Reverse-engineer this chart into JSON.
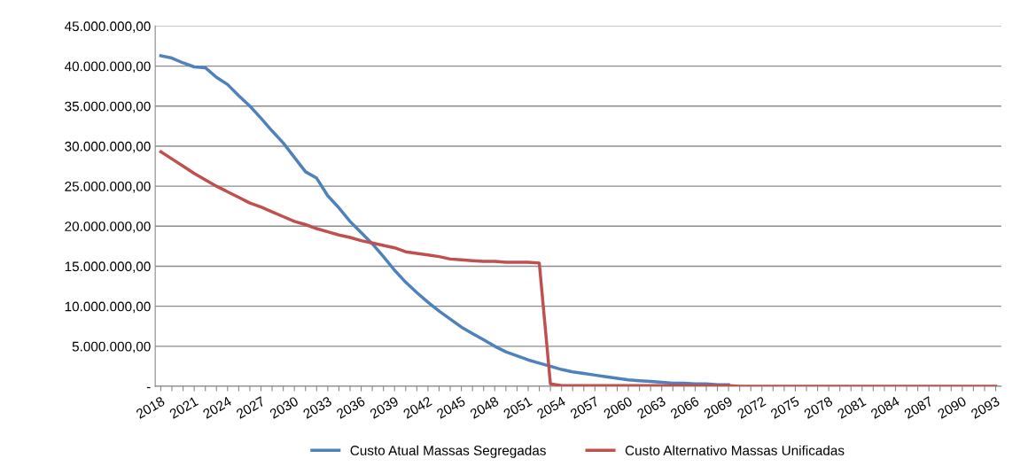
{
  "chart_data": {
    "type": "line",
    "categories": [
      "2018",
      null,
      null,
      "2021",
      null,
      null,
      "2024",
      null,
      null,
      "2027",
      null,
      null,
      "2030",
      null,
      null,
      "2033",
      null,
      null,
      "2036",
      null,
      null,
      "2039",
      null,
      null,
      "2042",
      null,
      null,
      "2045",
      null,
      null,
      "2048",
      null,
      null,
      "2051",
      null,
      null,
      "2054",
      null,
      null,
      "2057",
      null,
      null,
      "2060",
      null,
      null,
      "2063",
      null,
      null,
      "2066",
      null,
      null,
      "2069",
      null,
      null,
      "2072",
      null,
      null,
      "2075",
      null,
      null,
      "2078",
      null,
      null,
      "2081",
      null,
      null,
      "2084",
      null,
      null,
      "2087",
      null,
      null,
      "2090",
      null,
      null,
      "2093"
    ],
    "series": [
      {
        "name": "Custo Atual Massas Segregadas",
        "color": "#4f81bd",
        "values": [
          41300000,
          41000000,
          40400000,
          39900000,
          39800000,
          38600000,
          37700000,
          36300000,
          35000000,
          33500000,
          31900000,
          30400000,
          28600000,
          26800000,
          26000000,
          23800000,
          22300000,
          20600000,
          19200000,
          17800000,
          16200000,
          14500000,
          13000000,
          11700000,
          10500000,
          9400000,
          8400000,
          7400000,
          6600000,
          5800000,
          5000000,
          4300000,
          3800000,
          3300000,
          2900000,
          2500000,
          2100000,
          1800000,
          1600000,
          1400000,
          1200000,
          1000000,
          800000,
          700000,
          600000,
          500000,
          400000,
          400000,
          300000,
          300000,
          200000,
          200000,
          null,
          null,
          null,
          null,
          null,
          null,
          null,
          null,
          null,
          null,
          null,
          null,
          null,
          null,
          null,
          null,
          null,
          null,
          null,
          null,
          null,
          null,
          null,
          null
        ]
      },
      {
        "name": "Custo Alternativo Massas Unificadas",
        "color": "#c0504d",
        "values": [
          29300000,
          28400000,
          27500000,
          26600000,
          25800000,
          25000000,
          24300000,
          23600000,
          22900000,
          22400000,
          21800000,
          21200000,
          20600000,
          20200000,
          19700000,
          19300000,
          18900000,
          18600000,
          18200000,
          17900000,
          17600000,
          17300000,
          16800000,
          16600000,
          16400000,
          16200000,
          15900000,
          15800000,
          15700000,
          15600000,
          15600000,
          15500000,
          15500000,
          15500000,
          15400000,
          300000,
          100000,
          100000,
          100000,
          100000,
          100000,
          100000,
          100000,
          100000,
          100000,
          100000,
          100000,
          100000,
          100000,
          100000,
          100000,
          100000,
          0,
          0,
          0,
          0,
          0,
          0,
          0,
          0,
          0,
          0,
          0,
          0,
          0,
          0,
          0,
          0,
          0,
          0,
          0,
          0,
          0,
          0,
          0,
          0
        ]
      }
    ],
    "ylim": [
      0,
      45000000
    ],
    "yticks": [
      {
        "value": 0,
        "label": "-"
      },
      {
        "value": 5000000,
        "label": "5.000.000,00"
      },
      {
        "value": 10000000,
        "label": "10.000.000,00"
      },
      {
        "value": 15000000,
        "label": "15.000.000,00"
      },
      {
        "value": 20000000,
        "label": "20.000.000,00"
      },
      {
        "value": 25000000,
        "label": "25.000.000,00"
      },
      {
        "value": 30000000,
        "label": "30.000.000,00"
      },
      {
        "value": 35000000,
        "label": "35.000.000,00"
      },
      {
        "value": 40000000,
        "label": "40.000.000,00"
      },
      {
        "value": 45000000,
        "label": "45.000.000,00"
      }
    ],
    "grid": "y",
    "legend": "bottom",
    "marker": "none",
    "line_style": "solid"
  }
}
